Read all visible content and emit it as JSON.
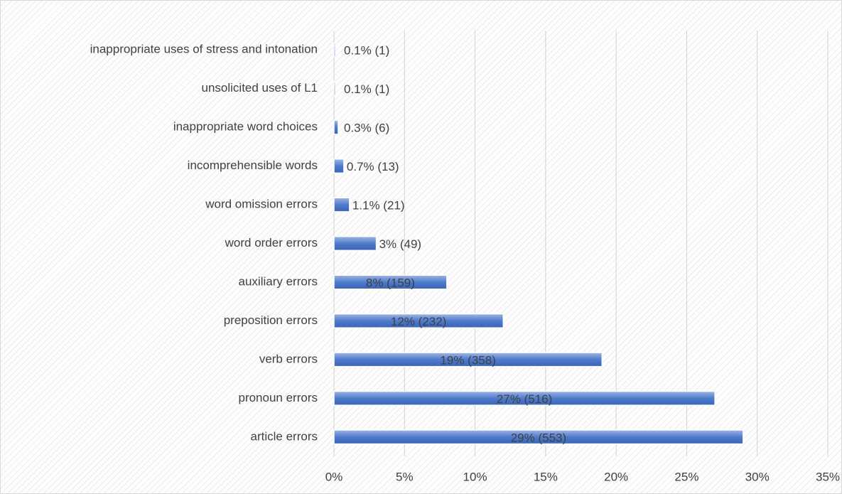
{
  "chart_data": {
    "type": "bar",
    "orientation": "horizontal",
    "categories": [
      "inappropriate uses of stress and intonation",
      "unsolicited uses of L1",
      "inappropriate word choices",
      "incomprehensible words",
      "word omission errors",
      "word order errors",
      "auxiliary errors",
      "preposition errors",
      "verb errors",
      "pronoun errors",
      "article errors"
    ],
    "values": [
      0.1,
      0.1,
      0.3,
      0.7,
      1.1,
      3,
      8,
      12,
      19,
      27,
      29
    ],
    "value_labels": [
      "0.1% (1)",
      "0.1% (1)",
      "0.3% (6)",
      "0.7% (13)",
      "1.1% (21)",
      "3% (49)",
      "8% (159)",
      "12% (232)",
      "19% (358)",
      "27% (516)",
      "29% (553)"
    ],
    "color": "#4472c4",
    "xlim": [
      0,
      35
    ],
    "xticks": [
      {
        "value": 0,
        "label": "0%"
      },
      {
        "value": 5,
        "label": "5%"
      },
      {
        "value": 10,
        "label": "10%"
      },
      {
        "value": 15,
        "label": "15%"
      },
      {
        "value": 20,
        "label": "20%"
      },
      {
        "value": 25,
        "label": "25%"
      },
      {
        "value": 30,
        "label": "30%"
      },
      {
        "value": 35,
        "label": "35%"
      }
    ],
    "grid": true
  }
}
